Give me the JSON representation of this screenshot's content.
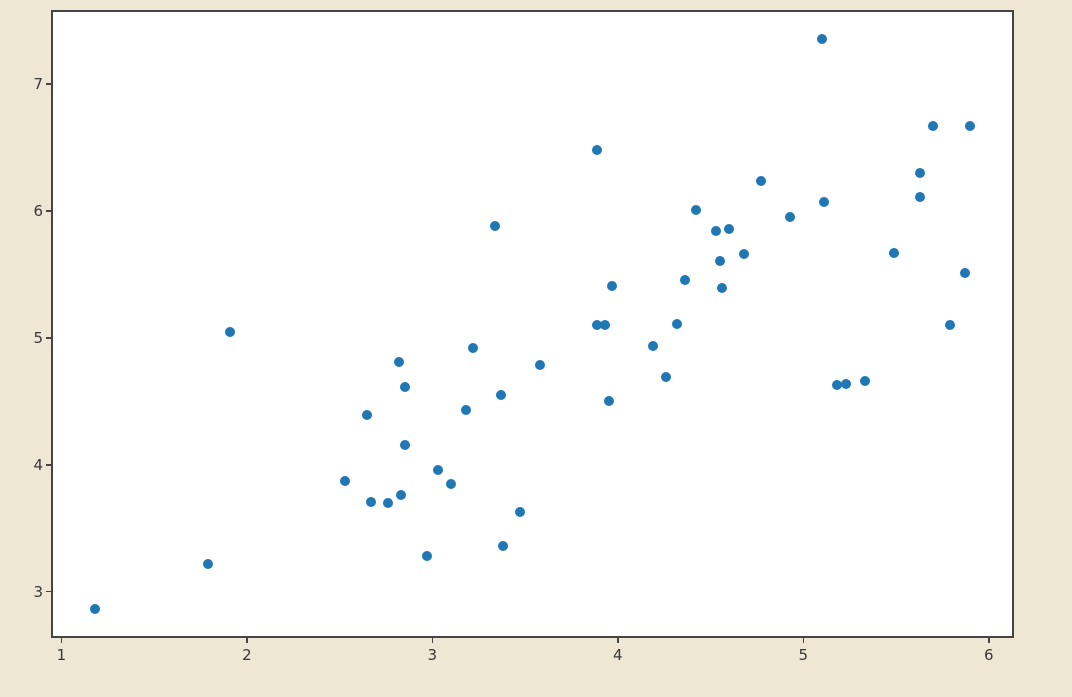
{
  "figure": {
    "background_color": "#EDE7D4",
    "axes_background_color": "#FFFFFF",
    "spine_color": "#454545",
    "tick_color": "#454545",
    "tick_label_color": "#383838"
  },
  "chart_data": {
    "type": "scatter",
    "title": "",
    "xlabel": "",
    "ylabel": "",
    "grid": false,
    "legend": null,
    "marker_color": "#1F77B4",
    "marker_diameter_px": 10,
    "xlim": [
      0.944,
      6.136
    ],
    "ylim": [
      2.635,
      7.585
    ],
    "x_ticks": [
      1,
      2,
      3,
      4,
      5,
      6
    ],
    "y_ticks": [
      3,
      4,
      5,
      6,
      7
    ],
    "points": [
      [
        1.18,
        2.86
      ],
      [
        1.79,
        3.22
      ],
      [
        1.91,
        5.05
      ],
      [
        2.53,
        3.87
      ],
      [
        2.65,
        4.39
      ],
      [
        2.67,
        3.71
      ],
      [
        2.76,
        3.7
      ],
      [
        2.82,
        4.81
      ],
      [
        2.83,
        3.76
      ],
      [
        2.85,
        4.61
      ],
      [
        2.85,
        4.16
      ],
      [
        2.97,
        3.28
      ],
      [
        3.03,
        3.96
      ],
      [
        3.1,
        3.85
      ],
      [
        3.18,
        4.43
      ],
      [
        3.22,
        4.92
      ],
      [
        3.34,
        5.88
      ],
      [
        3.37,
        4.55
      ],
      [
        3.38,
        3.36
      ],
      [
        3.47,
        3.63
      ],
      [
        3.58,
        4.79
      ],
      [
        3.89,
        5.1
      ],
      [
        3.89,
        6.48
      ],
      [
        3.93,
        5.1
      ],
      [
        3.95,
        4.5
      ],
      [
        3.97,
        5.41
      ],
      [
        4.19,
        4.94
      ],
      [
        4.26,
        4.69
      ],
      [
        4.32,
        5.11
      ],
      [
        4.36,
        5.46
      ],
      [
        4.42,
        6.01
      ],
      [
        4.53,
        5.84
      ],
      [
        4.55,
        5.61
      ],
      [
        4.56,
        5.39
      ],
      [
        4.6,
        5.86
      ],
      [
        4.68,
        5.66
      ],
      [
        4.77,
        6.24
      ],
      [
        4.93,
        5.95
      ],
      [
        5.1,
        7.36
      ],
      [
        5.11,
        6.07
      ],
      [
        5.18,
        4.63
      ],
      [
        5.23,
        4.64
      ],
      [
        5.33,
        4.66
      ],
      [
        5.49,
        5.67
      ],
      [
        5.63,
        6.3
      ],
      [
        5.63,
        6.11
      ],
      [
        5.7,
        6.67
      ],
      [
        5.79,
        5.1
      ],
      [
        5.87,
        5.51
      ],
      [
        5.9,
        6.67
      ]
    ]
  }
}
